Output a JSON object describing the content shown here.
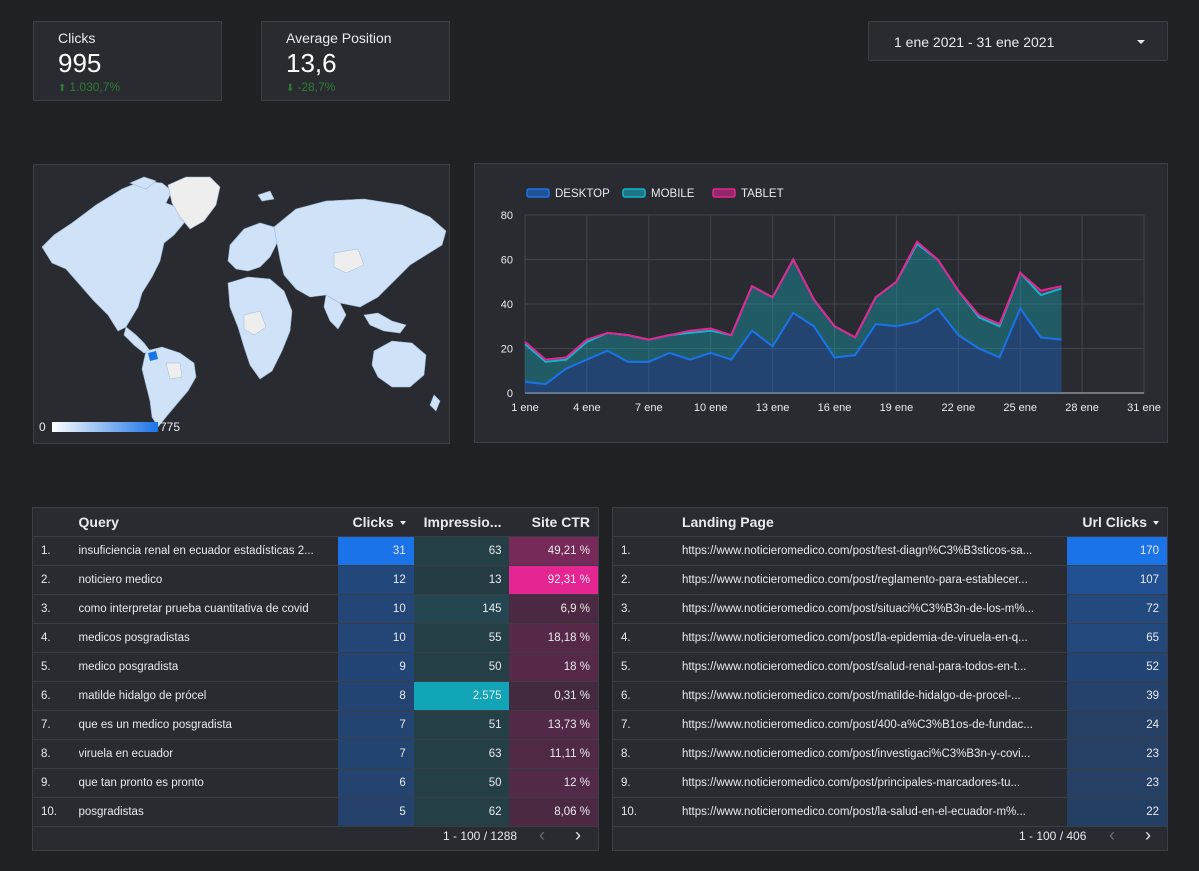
{
  "kpis": [
    {
      "label": "Clicks",
      "value": "995",
      "delta": "1.030,7%",
      "delta_dir": "up"
    },
    {
      "label": "Average Position",
      "value": "13,6",
      "delta": "-28,7%",
      "delta_dir": "down"
    }
  ],
  "date_range": {
    "label": "1 ene 2021 - 31 ene 2021",
    "icon": "chevron-down-icon"
  },
  "map": {
    "scale_min": "0",
    "scale_max": "775",
    "highlight_color": "#1a73e8",
    "land_color": "#cfe2f7",
    "no_data_color": "#e8e8e8"
  },
  "chart_data": {
    "type": "area",
    "x": [
      "1 ene",
      "2 ene",
      "3 ene",
      "4 ene",
      "5 ene",
      "6 ene",
      "7 ene",
      "8 ene",
      "9 ene",
      "10 ene",
      "11 ene",
      "12 ene",
      "13 ene",
      "14 ene",
      "15 ene",
      "16 ene",
      "17 ene",
      "18 ene",
      "19 ene",
      "20 ene",
      "21 ene",
      "22 ene",
      "23 ene",
      "24 ene",
      "25 ene",
      "26 ene",
      "27 ene"
    ],
    "x_ticks": [
      "1 ene",
      "4 ene",
      "7 ene",
      "10 ene",
      "13 ene",
      "16 ene",
      "19 ene",
      "22 ene",
      "25 ene",
      "28 ene",
      "31 ene"
    ],
    "x_domain": [
      1,
      31
    ],
    "stacked": true,
    "series": [
      {
        "name": "DESKTOP",
        "color": "#1a73e8",
        "values": [
          5,
          4,
          11,
          15,
          19,
          14,
          14,
          18,
          15,
          18,
          15,
          28,
          21,
          36,
          30,
          16,
          17,
          31,
          30,
          32,
          38,
          26,
          20,
          16,
          38,
          25,
          24
        ]
      },
      {
        "name": "MOBILE",
        "color": "#12b5cb",
        "values": [
          17,
          10,
          4,
          8,
          8,
          12,
          10,
          8,
          12,
          10,
          11,
          20,
          22,
          24,
          12,
          14,
          8,
          12,
          20,
          35,
          22,
          20,
          14,
          14,
          16,
          19,
          23
        ]
      },
      {
        "name": "TABLET",
        "color": "#e52592",
        "values": [
          1,
          1,
          1,
          1,
          0,
          0,
          0,
          0,
          1,
          1,
          0,
          0,
          0,
          0,
          0,
          0,
          0,
          0,
          0,
          1,
          0,
          0,
          1,
          1,
          0,
          2,
          1
        ]
      }
    ],
    "ylim": [
      0,
      80
    ],
    "y_ticks": [
      "0",
      "20",
      "40",
      "60",
      "80"
    ],
    "legend_position": "top-left",
    "grid": true
  },
  "query_table": {
    "headers": {
      "query": "Query",
      "clicks": "Clicks",
      "impressions": "Impressio...",
      "ctr": "Site CTR"
    },
    "rows": [
      {
        "idx": "1.",
        "query": "insuficiencia renal en ecuador estadísticas 2...",
        "clicks": "31",
        "impressions": "63",
        "ctr": "49,21 %"
      },
      {
        "idx": "2.",
        "query": "noticiero medico",
        "clicks": "12",
        "impressions": "13",
        "ctr": "92,31 %"
      },
      {
        "idx": "3.",
        "query": "como interpretar prueba cuantitativa de covid",
        "clicks": "10",
        "impressions": "145",
        "ctr": "6,9 %"
      },
      {
        "idx": "4.",
        "query": "medicos posgradistas",
        "clicks": "10",
        "impressions": "55",
        "ctr": "18,18 %"
      },
      {
        "idx": "5.",
        "query": "medico posgradista",
        "clicks": "9",
        "impressions": "50",
        "ctr": "18 %"
      },
      {
        "idx": "6.",
        "query": "matilde hidalgo de prócel",
        "clicks": "8",
        "impressions": "2.575",
        "ctr": "0,31 %"
      },
      {
        "idx": "7.",
        "query": "que es un medico posgradista",
        "clicks": "7",
        "impressions": "51",
        "ctr": "13,73 %"
      },
      {
        "idx": "8.",
        "query": "viruela en ecuador",
        "clicks": "7",
        "impressions": "63",
        "ctr": "11,11 %"
      },
      {
        "idx": "9.",
        "query": "que tan pronto es pronto",
        "clicks": "6",
        "impressions": "50",
        "ctr": "12 %"
      },
      {
        "idx": "10.",
        "query": "posgradistas",
        "clicks": "5",
        "impressions": "62",
        "ctr": "8,06 %"
      }
    ],
    "pagination": "1 - 100 / 1288"
  },
  "landing_table": {
    "headers": {
      "page": "Landing Page",
      "clicks": "Url Clicks"
    },
    "rows": [
      {
        "idx": "1.",
        "page": "https://www.noticieromedico.com/post/test-diagn%C3%B3sticos-sa...",
        "clicks": "170"
      },
      {
        "idx": "2.",
        "page": "https://www.noticieromedico.com/post/reglamento-para-establecer...",
        "clicks": "107"
      },
      {
        "idx": "3.",
        "page": "https://www.noticieromedico.com/post/situaci%C3%B3n-de-los-m%...",
        "clicks": "72"
      },
      {
        "idx": "4.",
        "page": "https://www.noticieromedico.com/post/la-epidemia-de-viruela-en-q...",
        "clicks": "65"
      },
      {
        "idx": "5.",
        "page": "https://www.noticieromedico.com/post/salud-renal-para-todos-en-t...",
        "clicks": "52"
      },
      {
        "idx": "6.",
        "page": "https://www.noticieromedico.com/post/matilde-hidalgo-de-procel-...",
        "clicks": "39"
      },
      {
        "idx": "7.",
        "page": "https://www.noticieromedico.com/post/400-a%C3%B1os-de-fundac...",
        "clicks": "24"
      },
      {
        "idx": "8.",
        "page": "https://www.noticieromedico.com/post/investigaci%C3%B3n-y-covi...",
        "clicks": "23"
      },
      {
        "idx": "9.",
        "page": "https://www.noticieromedico.com/post/principales-marcadores-tu...",
        "clicks": "23"
      },
      {
        "idx": "10.",
        "page": "https://www.noticieromedico.com/post/la-salud-en-el-ecuador-m%...",
        "clicks": "22"
      }
    ],
    "pagination": "1 - 100 / 406"
  },
  "colors": {
    "accent_blue": "#1a73e8",
    "teal": "#12b5cb",
    "magenta": "#e52592",
    "positive": "#2e7d32"
  }
}
